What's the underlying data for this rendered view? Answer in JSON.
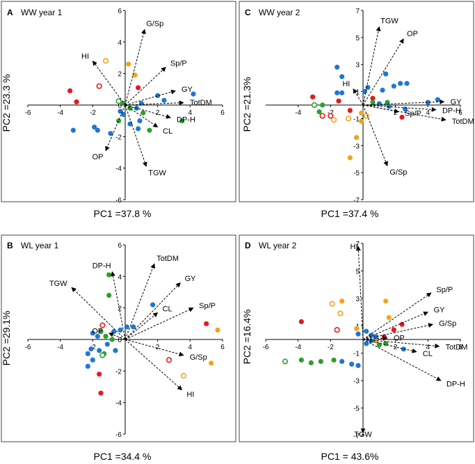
{
  "chart_data": [
    {
      "type": "scatter",
      "panel": "A",
      "title": "WW year 1",
      "xlabel": "PC1 =37.8 %",
      "ylabel": "PC2 =23.3 %",
      "xlim": [
        -6,
        6
      ],
      "ylim": [
        -6,
        6
      ],
      "xticks": [
        -6,
        -4,
        -2,
        2,
        4,
        6
      ],
      "yticks": [
        6,
        4,
        2,
        0,
        -2,
        -4,
        -6
      ],
      "vectors": [
        {
          "name": "HI",
          "x": -2.0,
          "y": 2.8
        },
        {
          "name": "G/Sp",
          "x": 1.2,
          "y": 4.8
        },
        {
          "name": "Sp/P",
          "x": 2.5,
          "y": 2.4
        },
        {
          "name": "GY",
          "x": 3.1,
          "y": 0.9
        },
        {
          "name": "TotDM",
          "x": 3.6,
          "y": 0.15
        },
        {
          "name": "DP-H",
          "x": 2.8,
          "y": -0.8
        },
        {
          "name": "CL",
          "x": 2.0,
          "y": -1.4
        },
        {
          "name": "OP",
          "x": -1.2,
          "y": -2.9
        },
        {
          "name": "TGW",
          "x": 1.3,
          "y": -3.9
        }
      ],
      "points": [
        {
          "x": -3.4,
          "y": 0.9,
          "color": "#e41a1c",
          "filled": true
        },
        {
          "x": -3.0,
          "y": 0.2,
          "color": "#e41a1c",
          "filled": true
        },
        {
          "x": -1.6,
          "y": 1.2,
          "color": "#e41a1c",
          "filled": false
        },
        {
          "x": -1.2,
          "y": 2.8,
          "color": "#f5a31a",
          "filled": false
        },
        {
          "x": 0.2,
          "y": 2.6,
          "color": "#f5a31a",
          "filled": true
        },
        {
          "x": 0.6,
          "y": 1.9,
          "color": "#f5a31a",
          "filled": true
        },
        {
          "x": 0.8,
          "y": 1.1,
          "color": "#e41a1c",
          "filled": true
        },
        {
          "x": -0.4,
          "y": 0.25,
          "color": "#2ca02c",
          "filled": false
        },
        {
          "x": -0.1,
          "y": 0.1,
          "color": "#2ca02c",
          "filled": true
        },
        {
          "x": 0.3,
          "y": -0.2,
          "color": "#2ca02c",
          "filled": true
        },
        {
          "x": 1.1,
          "y": -0.5,
          "color": "#2ca02c",
          "filled": true
        },
        {
          "x": -0.4,
          "y": -1.0,
          "color": "#2ca02c",
          "filled": true
        },
        {
          "x": 1.5,
          "y": -1.6,
          "color": "#2ca02c",
          "filled": true
        },
        {
          "x": 3.5,
          "y": -1.0,
          "color": "#2ca02c",
          "filled": true
        },
        {
          "x": 2.0,
          "y": 0.6,
          "color": "#1f77d4",
          "filled": true
        },
        {
          "x": 2.4,
          "y": 0.3,
          "color": "#1f77d4",
          "filled": true
        },
        {
          "x": 4.2,
          "y": 0.7,
          "color": "#1f77d4",
          "filled": true
        },
        {
          "x": 1.0,
          "y": 0.1,
          "color": "#1f77d4",
          "filled": true
        },
        {
          "x": 0.7,
          "y": -0.2,
          "color": "#1f77d4",
          "filled": true
        },
        {
          "x": -0.3,
          "y": -0.4,
          "color": "#1f77d4",
          "filled": true
        },
        {
          "x": -0.1,
          "y": -0.6,
          "color": "#1f77d4",
          "filled": true
        },
        {
          "x": 0.3,
          "y": -1.2,
          "color": "#1f77d4",
          "filled": true
        },
        {
          "x": 0.9,
          "y": -1.0,
          "color": "#1f77d4",
          "filled": true
        },
        {
          "x": -1.9,
          "y": -1.4,
          "color": "#1f77d4",
          "filled": true
        },
        {
          "x": -1.7,
          "y": -1.6,
          "color": "#1f77d4",
          "filled": true
        },
        {
          "x": -0.9,
          "y": -1.8,
          "color": "#1f77d4",
          "filled": true
        },
        {
          "x": -3.2,
          "y": -1.6,
          "color": "#1f77d4",
          "filled": true
        },
        {
          "x": 0.8,
          "y": -1.5,
          "color": "#1f77d4",
          "filled": true
        }
      ]
    },
    {
      "type": "scatter",
      "panel": "C",
      "title": "WW year 2",
      "xlabel": "PC1 =37.4 %",
      "ylabel": "PC2 =21.3%",
      "xlim": [
        -6,
        6
      ],
      "ylim": [
        -7,
        7
      ],
      "xticks": [
        -4,
        -2,
        2,
        4,
        6
      ],
      "yticks": [
        7,
        5,
        3,
        1,
        -1,
        -3,
        -5,
        -7
      ],
      "vectors": [
        {
          "name": "TGW",
          "x": 1.0,
          "y": 5.8
        },
        {
          "name": "OP",
          "x": 2.5,
          "y": 4.9
        },
        {
          "name": "HI",
          "x": -0.6,
          "y": 1.2
        },
        {
          "name": "GY",
          "x": 5.0,
          "y": 0.25
        },
        {
          "name": "DP-H",
          "x": 4.5,
          "y": -0.35
        },
        {
          "name": "Sp/P",
          "x": 2.2,
          "y": -0.5
        },
        {
          "name": "TotDM",
          "x": 5.1,
          "y": -1.1
        },
        {
          "name": "G/Sp",
          "x": 1.5,
          "y": -4.5
        }
      ],
      "points": [
        {
          "x": -3.1,
          "y": 0.6,
          "color": "#e41a1c",
          "filled": true
        },
        {
          "x": -2.5,
          "y": -0.8,
          "color": "#e41a1c",
          "filled": false
        },
        {
          "x": -2.0,
          "y": -0.8,
          "color": "#e41a1c",
          "filled": false
        },
        {
          "x": -1.5,
          "y": 0.3,
          "color": "#e41a1c",
          "filled": true
        },
        {
          "x": -0.8,
          "y": -0.4,
          "color": "#e41a1c",
          "filled": true
        },
        {
          "x": 0.6,
          "y": 0.5,
          "color": "#e41a1c",
          "filled": true
        },
        {
          "x": 2.4,
          "y": -0.9,
          "color": "#e41a1c",
          "filled": true
        },
        {
          "x": -0.1,
          "y": -0.6,
          "color": "#f5a31a",
          "filled": true
        },
        {
          "x": -0.1,
          "y": -1.2,
          "color": "#f5a31a",
          "filled": true
        },
        {
          "x": -0.4,
          "y": -2.4,
          "color": "#f5a31a",
          "filled": true
        },
        {
          "x": -0.8,
          "y": -3.9,
          "color": "#f5a31a",
          "filled": true
        },
        {
          "x": -1.8,
          "y": -1.1,
          "color": "#f5a31a",
          "filled": false
        },
        {
          "x": -0.9,
          "y": -1.0,
          "color": "#f5a31a",
          "filled": false
        },
        {
          "x": 0.2,
          "y": -0.8,
          "color": "#f5a31a",
          "filled": false
        },
        {
          "x": -3.0,
          "y": 0.0,
          "color": "#2ca02c",
          "filled": false
        },
        {
          "x": -2.5,
          "y": 0.0,
          "color": "#2ca02c",
          "filled": true
        },
        {
          "x": -2.7,
          "y": -0.5,
          "color": "#2ca02c",
          "filled": true
        },
        {
          "x": 0.6,
          "y": 0.2,
          "color": "#2ca02c",
          "filled": true
        },
        {
          "x": 1.5,
          "y": 0.2,
          "color": "#2ca02c",
          "filled": true
        },
        {
          "x": -1.6,
          "y": 2.8,
          "color": "#1f77d4",
          "filled": true
        },
        {
          "x": -1.3,
          "y": 2.1,
          "color": "#1f77d4",
          "filled": true
        },
        {
          "x": -1.6,
          "y": 0.9,
          "color": "#1f77d4",
          "filled": true
        },
        {
          "x": -1.3,
          "y": 0.9,
          "color": "#1f77d4",
          "filled": true
        },
        {
          "x": 0.1,
          "y": 1.0,
          "color": "#1f77d4",
          "filled": true
        },
        {
          "x": 0.3,
          "y": 1.3,
          "color": "#1f77d4",
          "filled": true
        },
        {
          "x": 1.2,
          "y": 1.1,
          "color": "#1f77d4",
          "filled": true
        },
        {
          "x": 1.4,
          "y": 2.3,
          "color": "#1f77d4",
          "filled": true
        },
        {
          "x": 1.9,
          "y": 1.4,
          "color": "#1f77d4",
          "filled": true
        },
        {
          "x": 2.3,
          "y": 1.6,
          "color": "#1f77d4",
          "filled": true
        },
        {
          "x": 2.7,
          "y": 1.6,
          "color": "#1f77d4",
          "filled": true
        },
        {
          "x": 1.0,
          "y": 0.1,
          "color": "#1f77d4",
          "filled": true
        },
        {
          "x": 1.6,
          "y": -0.1,
          "color": "#1f77d4",
          "filled": true
        },
        {
          "x": 2.6,
          "y": -0.3,
          "color": "#1f77d4",
          "filled": true
        },
        {
          "x": 4.0,
          "y": 0.2,
          "color": "#1f77d4",
          "filled": true
        },
        {
          "x": 4.6,
          "y": 0.4,
          "color": "#1f77d4",
          "filled": true
        }
      ]
    },
    {
      "type": "scatter",
      "panel": "B",
      "title": "WL year 1",
      "xlabel": "PC1 =34.4 %",
      "ylabel": "PC2 =29.1%",
      "xlim": [
        -6,
        6
      ],
      "ylim": [
        -6,
        6
      ],
      "xticks": [
        -6,
        -4,
        -2,
        2,
        4,
        6
      ],
      "yticks": [
        6,
        4,
        2,
        0,
        -2,
        -4,
        -6
      ],
      "vectors": [
        {
          "name": "DP-H",
          "x": -0.8,
          "y": 4.3
        },
        {
          "name": "TGW",
          "x": -3.3,
          "y": 3.3
        },
        {
          "name": "TotDM",
          "x": 1.8,
          "y": 4.8
        },
        {
          "name": "GY",
          "x": 3.4,
          "y": 3.6
        },
        {
          "name": "CL",
          "x": 2.0,
          "y": 1.7
        },
        {
          "name": "Sp/P",
          "x": 4.2,
          "y": 2.0
        },
        {
          "name": "OP",
          "x": -1.0,
          "y": 0.4
        },
        {
          "name": "G/Sp",
          "x": 3.6,
          "y": -1.0
        },
        {
          "name": "HI",
          "x": 3.5,
          "y": -3.2
        }
      ],
      "points": [
        {
          "x": -1.0,
          "y": 4.1,
          "color": "#2ca02c",
          "filled": true
        },
        {
          "x": -1.0,
          "y": 2.8,
          "color": "#2ca02c",
          "filled": true
        },
        {
          "x": -1.5,
          "y": 0.5,
          "color": "#2ca02c",
          "filled": true
        },
        {
          "x": -1.2,
          "y": 0.2,
          "color": "#2ca02c",
          "filled": true
        },
        {
          "x": -0.8,
          "y": 0.0,
          "color": "#2ca02c",
          "filled": true
        },
        {
          "x": -1.3,
          "y": -0.9,
          "color": "#2ca02c",
          "filled": true
        },
        {
          "x": -1.4,
          "y": -1.0,
          "color": "#2ca02c",
          "filled": false
        },
        {
          "x": -1.4,
          "y": 0.9,
          "color": "#e41a1c",
          "filled": false
        },
        {
          "x": -1.6,
          "y": -2.2,
          "color": "#e41a1c",
          "filled": true
        },
        {
          "x": -1.5,
          "y": -3.4,
          "color": "#e41a1c",
          "filled": true
        },
        {
          "x": 2.7,
          "y": -1.3,
          "color": "#e41a1c",
          "filled": false
        },
        {
          "x": 5.0,
          "y": 1.0,
          "color": "#e41a1c",
          "filled": true
        },
        {
          "x": 5.7,
          "y": 0.6,
          "color": "#f5a31a",
          "filled": true
        },
        {
          "x": 5.3,
          "y": -1.5,
          "color": "#f5a31a",
          "filled": true
        },
        {
          "x": 3.6,
          "y": -2.3,
          "color": "#f5a31a",
          "filled": false
        },
        {
          "x": 1.7,
          "y": 2.2,
          "color": "#1f77d4",
          "filled": true
        },
        {
          "x": 0.5,
          "y": 0.8,
          "color": "#1f77d4",
          "filled": true
        },
        {
          "x": 0.1,
          "y": 0.8,
          "color": "#1f77d4",
          "filled": true
        },
        {
          "x": -0.3,
          "y": 0.6,
          "color": "#1f77d4",
          "filled": true
        },
        {
          "x": -0.7,
          "y": 0.5,
          "color": "#1f77d4",
          "filled": true
        },
        {
          "x": -2.0,
          "y": 0.4,
          "color": "#1f77d4",
          "filled": true
        },
        {
          "x": -1.7,
          "y": 0.2,
          "color": "#1f77d4",
          "filled": true
        },
        {
          "x": -1.1,
          "y": -0.3,
          "color": "#1f77d4",
          "filled": true
        },
        {
          "x": -2.1,
          "y": -0.6,
          "color": "#1f77d4",
          "filled": true
        },
        {
          "x": -1.6,
          "y": -0.7,
          "color": "#1f77d4",
          "filled": true
        },
        {
          "x": -2.3,
          "y": -0.9,
          "color": "#1f77d4",
          "filled": true
        },
        {
          "x": -0.6,
          "y": -0.7,
          "color": "#1f77d4",
          "filled": true
        },
        {
          "x": -2.0,
          "y": -1.3,
          "color": "#1f77d4",
          "filled": true
        },
        {
          "x": -2.3,
          "y": -1.7,
          "color": "#1f77d4",
          "filled": true
        }
      ]
    },
    {
      "type": "scatter",
      "panel": "D",
      "title": "WL year 2",
      "xlabel": "PC1 = 43.6%",
      "ylabel": "PC2 =16.4%",
      "xlim": [
        -6,
        6
      ],
      "ylim": [
        -7,
        7
      ],
      "xticks": [
        -6,
        -4,
        -2,
        2,
        4,
        6
      ],
      "yticks": [
        7,
        5,
        3,
        1,
        -1,
        -3,
        -5,
        -7
      ],
      "vectors": [
        {
          "name": "HI",
          "x": -0.3,
          "y": 6.8
        },
        {
          "name": "Sp/P",
          "x": 4.2,
          "y": 3.4
        },
        {
          "name": "GY",
          "x": 4.0,
          "y": 2.0
        },
        {
          "name": "G/Sp",
          "x": 4.3,
          "y": 1.1
        },
        {
          "name": "OP",
          "x": 1.5,
          "y": 0.1
        },
        {
          "name": "TotDM",
          "x": 4.7,
          "y": -0.5
        },
        {
          "name": "CL",
          "x": 3.3,
          "y": -0.9
        },
        {
          "name": "DP-H",
          "x": 4.8,
          "y": -3.0
        },
        {
          "name": "TGW",
          "x": 0.0,
          "y": -6.8
        }
      ],
      "points": [
        {
          "x": -3.8,
          "y": 1.3,
          "color": "#e41a1c",
          "filled": true
        },
        {
          "x": -1.6,
          "y": 0.7,
          "color": "#e41a1c",
          "filled": false
        },
        {
          "x": 1.3,
          "y": 0.2,
          "color": "#e41a1c",
          "filled": true
        },
        {
          "x": 1.9,
          "y": 0.7,
          "color": "#e41a1c",
          "filled": true
        },
        {
          "x": 2.4,
          "y": 1.1,
          "color": "#e41a1c",
          "filled": true
        },
        {
          "x": -1.9,
          "y": 2.6,
          "color": "#f5a31a",
          "filled": false
        },
        {
          "x": -1.3,
          "y": 2.8,
          "color": "#f5a31a",
          "filled": true
        },
        {
          "x": -1.4,
          "y": 1.9,
          "color": "#f5a31a",
          "filled": false
        },
        {
          "x": 1.4,
          "y": 2.8,
          "color": "#f5a31a",
          "filled": true
        },
        {
          "x": 1.6,
          "y": 1.6,
          "color": "#f5a31a",
          "filled": true
        },
        {
          "x": -0.4,
          "y": 0.8,
          "color": "#f5a31a",
          "filled": true
        },
        {
          "x": 0.8,
          "y": -0.1,
          "color": "#f5a31a",
          "filled": true
        },
        {
          "x": -4.8,
          "y": -1.6,
          "color": "#2ca02c",
          "filled": false
        },
        {
          "x": -3.8,
          "y": -1.5,
          "color": "#2ca02c",
          "filled": true
        },
        {
          "x": -3.2,
          "y": -1.7,
          "color": "#2ca02c",
          "filled": true
        },
        {
          "x": -2.6,
          "y": -1.6,
          "color": "#2ca02c",
          "filled": true
        },
        {
          "x": -1.8,
          "y": -1.5,
          "color": "#2ca02c",
          "filled": true
        },
        {
          "x": 1.0,
          "y": -0.4,
          "color": "#2ca02c",
          "filled": true
        },
        {
          "x": 1.4,
          "y": -0.3,
          "color": "#2ca02c",
          "filled": true
        },
        {
          "x": -0.3,
          "y": 0.4,
          "color": "#1f77d4",
          "filled": true
        },
        {
          "x": 0.2,
          "y": 0.6,
          "color": "#1f77d4",
          "filled": true
        },
        {
          "x": 0.5,
          "y": 0.3,
          "color": "#1f77d4",
          "filled": true
        },
        {
          "x": 0.8,
          "y": 0.2,
          "color": "#1f77d4",
          "filled": true
        },
        {
          "x": 0.5,
          "y": -0.1,
          "color": "#1f77d4",
          "filled": true
        },
        {
          "x": 0.2,
          "y": -0.3,
          "color": "#1f77d4",
          "filled": true
        },
        {
          "x": 2.5,
          "y": -0.7,
          "color": "#1f77d4",
          "filled": true
        },
        {
          "x": -1.3,
          "y": -1.6,
          "color": "#1f77d4",
          "filled": true
        },
        {
          "x": -0.7,
          "y": -1.8,
          "color": "#1f77d4",
          "filled": true
        },
        {
          "x": -0.3,
          "y": -1.9,
          "color": "#1f77d4",
          "filled": true
        }
      ]
    }
  ]
}
